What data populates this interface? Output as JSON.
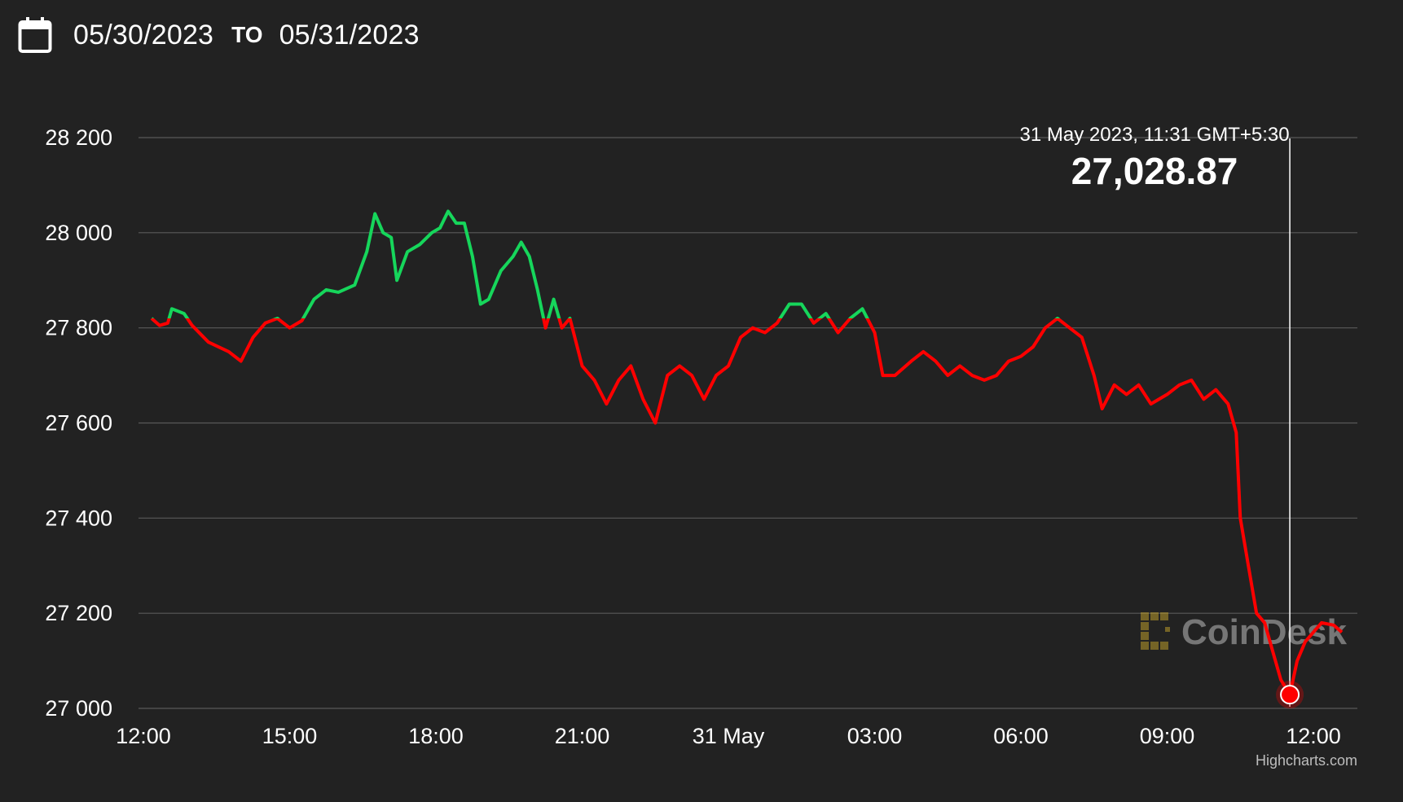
{
  "header": {
    "from_date": "05/30/2023",
    "separator": "TO",
    "to_date": "05/31/2023",
    "icon": "calendar-icon"
  },
  "colors": {
    "background": "#222222",
    "up": "#16d65b",
    "down": "#ff0000",
    "grid": "#5a5a5a",
    "crosshair": "#ffffff"
  },
  "tooltip": {
    "date": "31 May 2023, 11:31 GMT+5:30",
    "value": "27,028.87"
  },
  "watermark": "CoinDesk",
  "credits": "Highcharts.com",
  "chart_data": {
    "type": "line",
    "title": "",
    "xlabel": "",
    "ylabel": "",
    "ylim": [
      27000,
      28200
    ],
    "yticks": [
      27000,
      27200,
      27400,
      27600,
      27800,
      28000,
      28200
    ],
    "ytick_labels": [
      "27 000",
      "27 200",
      "27 400",
      "27 600",
      "27 800",
      "28 000",
      "28 200"
    ],
    "x_start": "2023-05-30T12:00",
    "x_end": "2023-05-31T12:40",
    "xticks": [
      "2023-05-30T12:00",
      "2023-05-30T15:00",
      "2023-05-30T18:00",
      "2023-05-30T21:00",
      "2023-05-31T00:00",
      "2023-05-31T03:00",
      "2023-05-31T06:00",
      "2023-05-31T09:00",
      "2023-05-31T12:00"
    ],
    "xtick_labels": [
      "12:00",
      "15:00",
      "18:00",
      "21:00",
      "31 May",
      "03:00",
      "06:00",
      "09:00",
      "12:00"
    ],
    "grid": true,
    "legend": "none",
    "baseline": 27820,
    "colors_note": "green above baseline, red below baseline",
    "series": [
      {
        "points": [
          [
            "2023-05-30T12:10",
            27820
          ],
          [
            "2023-05-30T12:20",
            27805
          ],
          [
            "2023-05-30T12:30",
            27810
          ],
          [
            "2023-05-30T12:35",
            27840
          ],
          [
            "2023-05-30T12:50",
            27830
          ],
          [
            "2023-05-30T13:00",
            27805
          ],
          [
            "2023-05-30T13:20",
            27770
          ],
          [
            "2023-05-30T13:45",
            27750
          ],
          [
            "2023-05-30T14:00",
            27730
          ],
          [
            "2023-05-30T14:15",
            27780
          ],
          [
            "2023-05-30T14:30",
            27810
          ],
          [
            "2023-05-30T14:45",
            27820
          ],
          [
            "2023-05-30T15:00",
            27800
          ],
          [
            "2023-05-30T15:15",
            27815
          ],
          [
            "2023-05-30T15:30",
            27860
          ],
          [
            "2023-05-30T15:45",
            27880
          ],
          [
            "2023-05-30T16:00",
            27875
          ],
          [
            "2023-05-30T16:20",
            27890
          ],
          [
            "2023-05-30T16:35",
            27960
          ],
          [
            "2023-05-30T16:45",
            28040
          ],
          [
            "2023-05-30T16:55",
            28000
          ],
          [
            "2023-05-30T17:05",
            27990
          ],
          [
            "2023-05-30T17:12",
            27900
          ],
          [
            "2023-05-30T17:25",
            27960
          ],
          [
            "2023-05-30T17:40",
            27975
          ],
          [
            "2023-05-30T17:55",
            28000
          ],
          [
            "2023-05-30T18:05",
            28010
          ],
          [
            "2023-05-30T18:15",
            28045
          ],
          [
            "2023-05-30T18:25",
            28020
          ],
          [
            "2023-05-30T18:35",
            28020
          ],
          [
            "2023-05-30T18:45",
            27950
          ],
          [
            "2023-05-30T18:55",
            27850
          ],
          [
            "2023-05-30T19:05",
            27860
          ],
          [
            "2023-05-30T19:20",
            27920
          ],
          [
            "2023-05-30T19:35",
            27950
          ],
          [
            "2023-05-30T19:45",
            27980
          ],
          [
            "2023-05-30T19:55",
            27950
          ],
          [
            "2023-05-30T20:05",
            27880
          ],
          [
            "2023-05-30T20:15",
            27800
          ],
          [
            "2023-05-30T20:25",
            27860
          ],
          [
            "2023-05-30T20:35",
            27800
          ],
          [
            "2023-05-30T20:45",
            27820
          ],
          [
            "2023-05-30T21:00",
            27720
          ],
          [
            "2023-05-30T21:15",
            27690
          ],
          [
            "2023-05-30T21:30",
            27640
          ],
          [
            "2023-05-30T21:45",
            27690
          ],
          [
            "2023-05-30T22:00",
            27720
          ],
          [
            "2023-05-30T22:15",
            27650
          ],
          [
            "2023-05-30T22:30",
            27600
          ],
          [
            "2023-05-30T22:45",
            27700
          ],
          [
            "2023-05-30T23:00",
            27720
          ],
          [
            "2023-05-30T23:15",
            27700
          ],
          [
            "2023-05-30T23:30",
            27650
          ],
          [
            "2023-05-30T23:45",
            27700
          ],
          [
            "2023-05-31T00:00",
            27720
          ],
          [
            "2023-05-31T00:15",
            27780
          ],
          [
            "2023-05-31T00:30",
            27800
          ],
          [
            "2023-05-31T00:45",
            27790
          ],
          [
            "2023-05-31T01:00",
            27810
          ],
          [
            "2023-05-31T01:15",
            27850
          ],
          [
            "2023-05-31T01:30",
            27850
          ],
          [
            "2023-05-31T01:45",
            27810
          ],
          [
            "2023-05-31T02:00",
            27830
          ],
          [
            "2023-05-31T02:15",
            27790
          ],
          [
            "2023-05-31T02:30",
            27820
          ],
          [
            "2023-05-31T02:45",
            27840
          ],
          [
            "2023-05-31T03:00",
            27790
          ],
          [
            "2023-05-31T03:10",
            27700
          ],
          [
            "2023-05-31T03:25",
            27700
          ],
          [
            "2023-05-31T03:45",
            27730
          ],
          [
            "2023-05-31T04:00",
            27750
          ],
          [
            "2023-05-31T04:15",
            27730
          ],
          [
            "2023-05-31T04:30",
            27700
          ],
          [
            "2023-05-31T04:45",
            27720
          ],
          [
            "2023-05-31T05:00",
            27700
          ],
          [
            "2023-05-31T05:15",
            27690
          ],
          [
            "2023-05-31T05:30",
            27700
          ],
          [
            "2023-05-31T05:45",
            27730
          ],
          [
            "2023-05-31T06:00",
            27740
          ],
          [
            "2023-05-31T06:15",
            27760
          ],
          [
            "2023-05-31T06:30",
            27800
          ],
          [
            "2023-05-31T06:45",
            27820
          ],
          [
            "2023-05-31T07:00",
            27800
          ],
          [
            "2023-05-31T07:15",
            27780
          ],
          [
            "2023-05-31T07:30",
            27700
          ],
          [
            "2023-05-31T07:40",
            27630
          ],
          [
            "2023-05-31T07:55",
            27680
          ],
          [
            "2023-05-31T08:10",
            27660
          ],
          [
            "2023-05-31T08:25",
            27680
          ],
          [
            "2023-05-31T08:40",
            27640
          ],
          [
            "2023-05-31T09:00",
            27660
          ],
          [
            "2023-05-31T09:15",
            27680
          ],
          [
            "2023-05-31T09:30",
            27690
          ],
          [
            "2023-05-31T09:45",
            27650
          ],
          [
            "2023-05-31T10:00",
            27670
          ],
          [
            "2023-05-31T10:15",
            27640
          ],
          [
            "2023-05-31T10:25",
            27580
          ],
          [
            "2023-05-31T10:30",
            27400
          ],
          [
            "2023-05-31T10:40",
            27300
          ],
          [
            "2023-05-31T10:50",
            27200
          ],
          [
            "2023-05-31T11:00",
            27180
          ],
          [
            "2023-05-31T11:10",
            27120
          ],
          [
            "2023-05-31T11:20",
            27060
          ],
          [
            "2023-05-31T11:31",
            27028.87
          ],
          [
            "2023-05-31T11:40",
            27100
          ],
          [
            "2023-05-31T11:50",
            27140
          ],
          [
            "2023-05-31T12:00",
            27160
          ],
          [
            "2023-05-31T12:10",
            27180
          ],
          [
            "2023-05-31T12:25",
            27175
          ],
          [
            "2023-05-31T12:35",
            27160
          ]
        ]
      }
    ],
    "highlight": {
      "x": "2023-05-31T11:31",
      "y": 27028.87
    }
  }
}
